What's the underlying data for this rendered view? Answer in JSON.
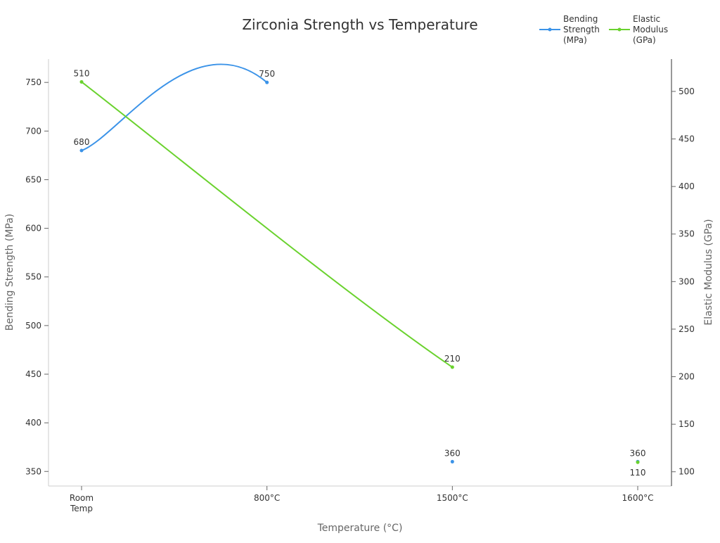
{
  "chart_data": {
    "type": "line",
    "title": "Zirconia Strength vs Temperature",
    "xlabel": "Temperature (°C)",
    "ylabel": "Bending Strength (MPa)",
    "y2label": "Elastic Modulus (GPa)",
    "categories": [
      [
        "Room",
        "Temp"
      ],
      [
        "800°C"
      ],
      [
        "1500°C"
      ],
      [
        "1600°C"
      ]
    ],
    "ylim": [
      335,
      774
    ],
    "y2lim": [
      85,
      534
    ],
    "yticks": [
      350,
      400,
      450,
      500,
      550,
      600,
      650,
      700,
      750
    ],
    "y2ticks": [
      100,
      150,
      200,
      250,
      300,
      350,
      400,
      450,
      500
    ],
    "grid": false,
    "legend_position": "top-right",
    "series": [
      {
        "name": [
          "Bending",
          "Strength",
          "(MPa)"
        ],
        "axis": "left",
        "color": "#3b93e8",
        "values": [
          680,
          750,
          360,
          360
        ]
      },
      {
        "name": [
          "Elastic",
          "Modulus",
          "(GPa)"
        ],
        "axis": "right",
        "color": "#6ad22e",
        "values": [
          510,
          null,
          210,
          110
        ]
      }
    ]
  }
}
